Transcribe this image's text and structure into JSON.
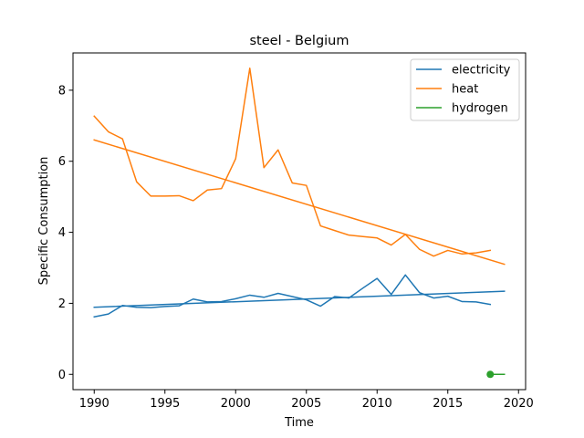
{
  "chart_data": {
    "type": "line",
    "title": "steel - Belgium",
    "xlabel": "Time",
    "ylabel": "Specific Consumption",
    "xlim": [
      1988.5,
      2020.5
    ],
    "ylim": [
      -0.43,
      9.05
    ],
    "xticks": [
      1990,
      1995,
      2000,
      2005,
      2010,
      2015,
      2020
    ],
    "yticks": [
      0,
      2,
      4,
      6,
      8
    ],
    "grid": false,
    "legend_position": "top-right",
    "series": [
      {
        "name": "electricity",
        "color": "#1f77b4",
        "x": [
          1990,
          1991,
          1992,
          1993,
          1994,
          1995,
          1996,
          1997,
          1998,
          1999,
          2000,
          2001,
          2002,
          2003,
          2004,
          2005,
          2006,
          2007,
          2008,
          2009,
          2010,
          2011,
          2012,
          2013,
          2014,
          2015,
          2016,
          2017,
          2018
        ],
        "y": [
          1.62,
          1.7,
          1.94,
          1.89,
          1.88,
          1.91,
          1.93,
          2.12,
          2.04,
          2.05,
          2.13,
          2.23,
          2.17,
          2.28,
          2.19,
          2.1,
          1.92,
          2.19,
          2.15,
          2.43,
          2.7,
          2.25,
          2.8,
          2.3,
          2.15,
          2.2,
          2.05,
          2.04,
          1.97
        ]
      },
      {
        "name": "electricity trend",
        "color": "#1f77b4",
        "x": [
          1990,
          2019
        ],
        "y": [
          1.89,
          2.34
        ]
      },
      {
        "name": "heat",
        "color": "#ff7f0e",
        "x": [
          1990,
          1991,
          1992,
          1993,
          1994,
          1995,
          1996,
          1997,
          1998,
          1999,
          2000,
          2001,
          2002,
          2003,
          2004,
          2005,
          2006,
          2007,
          2008,
          2009,
          2010,
          2011,
          2012,
          2013,
          2014,
          2015,
          2016,
          2017,
          2018
        ],
        "y": [
          7.27,
          6.83,
          6.63,
          5.42,
          5.02,
          5.02,
          5.03,
          4.89,
          5.19,
          5.23,
          6.07,
          8.62,
          5.82,
          6.32,
          5.39,
          5.32,
          4.18,
          4.05,
          3.92,
          3.88,
          3.84,
          3.64,
          3.94,
          3.52,
          3.33,
          3.49,
          3.39,
          3.42,
          3.49
        ]
      },
      {
        "name": "heat trend",
        "color": "#ff7f0e",
        "x": [
          1990,
          2019
        ],
        "y": [
          6.6,
          3.1
        ]
      },
      {
        "name": "hydrogen",
        "color": "#2ca02c",
        "x": [
          2018
        ],
        "y": [
          0.0
        ],
        "marker": "circle"
      },
      {
        "name": "hydrogen trend",
        "color": "#2ca02c",
        "x": [
          2018,
          2019
        ],
        "y": [
          0.0,
          0.0
        ]
      }
    ],
    "legend": [
      {
        "label": "electricity",
        "color": "#1f77b4"
      },
      {
        "label": "heat",
        "color": "#ff7f0e"
      },
      {
        "label": "hydrogen",
        "color": "#2ca02c"
      }
    ]
  }
}
